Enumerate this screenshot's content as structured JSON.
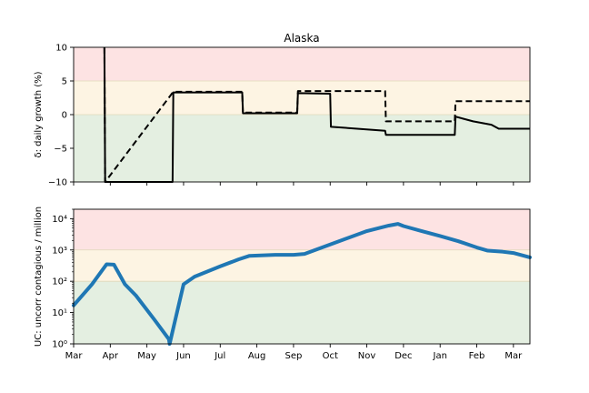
{
  "chart_data": [
    {
      "type": "line",
      "title": "Alaska",
      "ylabel": "δ: daily growth (%)",
      "xlabel": "",
      "x_unit": "month (Mar = 0)",
      "xlim": [
        0,
        12.45
      ],
      "ylim": [
        -10,
        10
      ],
      "yticks": [
        -10,
        -5,
        0,
        5,
        10
      ],
      "ytick_labels": [
        "−10",
        "−5",
        "0",
        "5",
        "10"
      ],
      "bands": [
        {
          "from": 5,
          "to": 10,
          "color": "#fde3e3"
        },
        {
          "from": 0,
          "to": 5,
          "color": "#fdf4e3"
        },
        {
          "from": -10,
          "to": 0,
          "color": "#e4efe1"
        }
      ],
      "series": [
        {
          "style": "solid",
          "color": "#000000",
          "x": [
            0.84,
            0.86,
            2.7,
            2.72,
            4.6,
            4.62,
            6.1,
            6.12,
            7.0,
            7.02,
            8.5,
            8.52,
            10.4,
            10.42,
            10.9,
            11.4,
            11.6,
            12.45
          ],
          "y": [
            10,
            -10,
            -10,
            3.3,
            3.3,
            0.2,
            0.2,
            3.2,
            3.1,
            -1.8,
            -2.4,
            -3.0,
            -3.0,
            -0.3,
            -1.0,
            -1.5,
            -2.1,
            -2.1
          ]
        },
        {
          "style": "dashed",
          "color": "#000000",
          "x": [
            0.84,
            0.86,
            2.72,
            4.6,
            4.62,
            6.1,
            6.12,
            8.5,
            8.52,
            10.4,
            10.42,
            12.45
          ],
          "y": [
            10,
            -10,
            3.4,
            3.4,
            0.3,
            0.3,
            3.5,
            3.5,
            -1.0,
            -1.0,
            2.0,
            2.0
          ]
        }
      ]
    },
    {
      "type": "line",
      "title": "",
      "ylabel": "UC: uncorr contagious / million",
      "xlabel": "",
      "yscale": "log",
      "xlim": [
        0,
        12.45
      ],
      "ylim": [
        1,
        20000
      ],
      "yticks": [
        1,
        10,
        100,
        1000,
        10000
      ],
      "ytick_labels": [
        "10⁰",
        "10¹",
        "10²",
        "10³",
        "10⁴"
      ],
      "bands": [
        {
          "from": 1000,
          "to": 20000,
          "color": "#fde3e3"
        },
        {
          "from": 100,
          "to": 1000,
          "color": "#fdf4e3"
        },
        {
          "from": 1,
          "to": 100,
          "color": "#e4efe1"
        }
      ],
      "xtick_positions": [
        0,
        1,
        2,
        3,
        4,
        5,
        6,
        7,
        8,
        9,
        10,
        11,
        12
      ],
      "xtick_labels": [
        "Mar",
        "Apr",
        "May",
        "Jun",
        "Jul",
        "Aug",
        "Sep",
        "Oct",
        "Nov",
        "Dec",
        "Jan",
        "Feb",
        "Mar"
      ],
      "series": [
        {
          "style": "solid",
          "color": "#1f77b4",
          "x": [
            0,
            0.5,
            0.9,
            1.1,
            1.4,
            1.7,
            2.2,
            2.6,
            2.62,
            2.8,
            3.0,
            3.3,
            4.0,
            4.5,
            4.8,
            5.5,
            6.0,
            6.3,
            7.0,
            8.0,
            8.6,
            8.85,
            9.0,
            9.5,
            10.0,
            10.5,
            11.0,
            11.3,
            11.7,
            12.0,
            12.45
          ],
          "y": [
            17,
            80,
            350,
            340,
            80,
            35,
            6,
            1.4,
            1,
            8,
            80,
            140,
            300,
            500,
            650,
            700,
            700,
            750,
            1500,
            4000,
            6000,
            6800,
            5800,
            4000,
            2800,
            1900,
            1200,
            950,
            880,
            800,
            580
          ]
        }
      ]
    }
  ]
}
